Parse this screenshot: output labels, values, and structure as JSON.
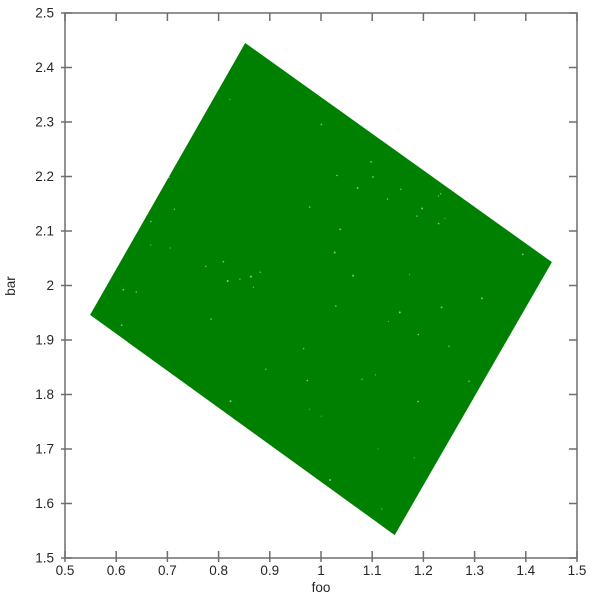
{
  "figure": {
    "background_color": "#ffffff",
    "frame_color": "#6e6e6e",
    "tick_color": "#6e6e6e",
    "text_color": "#262626"
  },
  "chart_data": {
    "type": "scatter",
    "title": "",
    "xlabel": "foo",
    "ylabel": "bar",
    "xlim": [
      0.5,
      1.5
    ],
    "ylim": [
      1.5,
      2.5
    ],
    "grid": false,
    "legend": null,
    "xtick_values": [
      0.5,
      0.6,
      0.7,
      0.8,
      0.9,
      1.0,
      1.1,
      1.2,
      1.3,
      1.4,
      1.5
    ],
    "xtick_labels": [
      "0.5",
      "0.6",
      "0.7",
      "0.8",
      "0.9",
      "1",
      "1.1",
      "1.2",
      "1.3",
      "1.4",
      "1.5"
    ],
    "ytick_values": [
      1.5,
      1.6,
      1.7,
      1.8,
      1.9,
      2.0,
      2.1,
      2.2,
      2.3,
      2.4,
      2.5
    ],
    "ytick_labels": [
      "1.5",
      "1.6",
      "1.7",
      "1.8",
      "1.9",
      "2",
      "2.1",
      "2.2",
      "2.3",
      "2.4",
      "2.5"
    ],
    "marker_color": "#008000",
    "description": "Dense uniform scatter of small green points completely filling a rotated square region centered near (1.0, 2.0)",
    "region_center": [
      1.0,
      1.994
    ],
    "region_vertices": [
      [
        0.852,
        2.445
      ],
      [
        1.451,
        2.043
      ],
      [
        1.144,
        1.542
      ],
      [
        0.549,
        1.946
      ]
    ]
  }
}
